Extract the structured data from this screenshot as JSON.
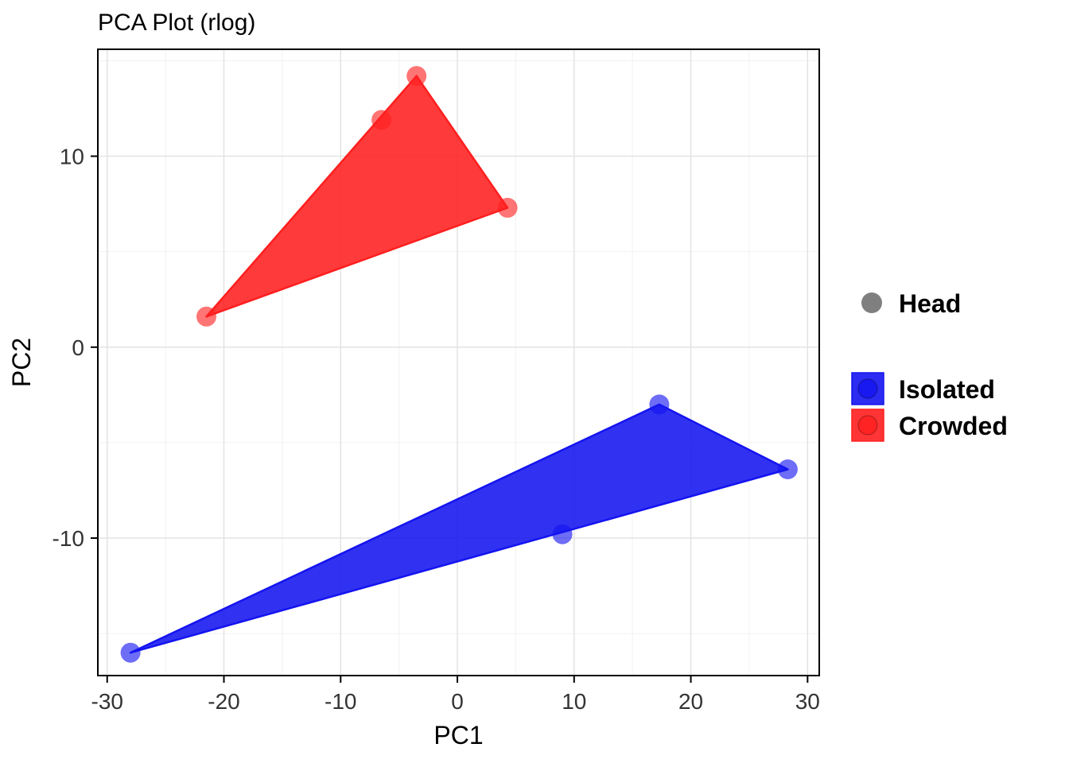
{
  "title": "PCA Plot (rlog)",
  "chart_data": {
    "type": "scatter",
    "title": "PCA Plot (rlog)",
    "xlabel": "PC1",
    "ylabel": "PC2",
    "xlim": [
      -30.8,
      31.0
    ],
    "ylim": [
      -17.2,
      15.6
    ],
    "xticks": [
      -30,
      -20,
      -10,
      0,
      10,
      20,
      30
    ],
    "yticks": [
      -10,
      0,
      10
    ],
    "xticks_minor": [
      -25,
      -15,
      -5,
      5,
      15,
      25
    ],
    "yticks_minor": [
      -15,
      -5,
      5,
      15
    ],
    "grid": true,
    "legend_position": "right",
    "point_alpha": 0.62,
    "hull_alpha": 0.88,
    "colors": {
      "isolated": "#1414F0",
      "crowded": "#FF1F1F",
      "shape_key": "#7F7F7F",
      "grid_major": "#E3E3E3",
      "grid_minor": "#F1F1F1",
      "panel_border": "#000000",
      "axis_text": "#333333"
    },
    "series": [
      {
        "name": "Crowded",
        "color": "#FF1F1F",
        "points": [
          [
            -21.5,
            1.6
          ],
          [
            -6.5,
            11.9
          ],
          [
            -3.5,
            14.2
          ],
          [
            4.3,
            7.3
          ]
        ],
        "hull": [
          [
            -21.5,
            1.6
          ],
          [
            -3.5,
            14.2
          ],
          [
            4.3,
            7.3
          ]
        ]
      },
      {
        "name": "Isolated",
        "color": "#1414F0",
        "points": [
          [
            -28.0,
            -16.0
          ],
          [
            9.0,
            -9.8
          ],
          [
            17.3,
            -3.0
          ],
          [
            28.3,
            -6.4
          ]
        ],
        "hull": [
          [
            -28.0,
            -16.0
          ],
          [
            17.3,
            -3.0
          ],
          [
            28.3,
            -6.4
          ]
        ]
      }
    ],
    "shape_legend": {
      "label": "Head",
      "color": "#7F7F7F"
    },
    "fill_legend": [
      {
        "label": "Isolated",
        "color": "#1414F0"
      },
      {
        "label": "Crowded",
        "color": "#FF1F1F"
      }
    ]
  }
}
